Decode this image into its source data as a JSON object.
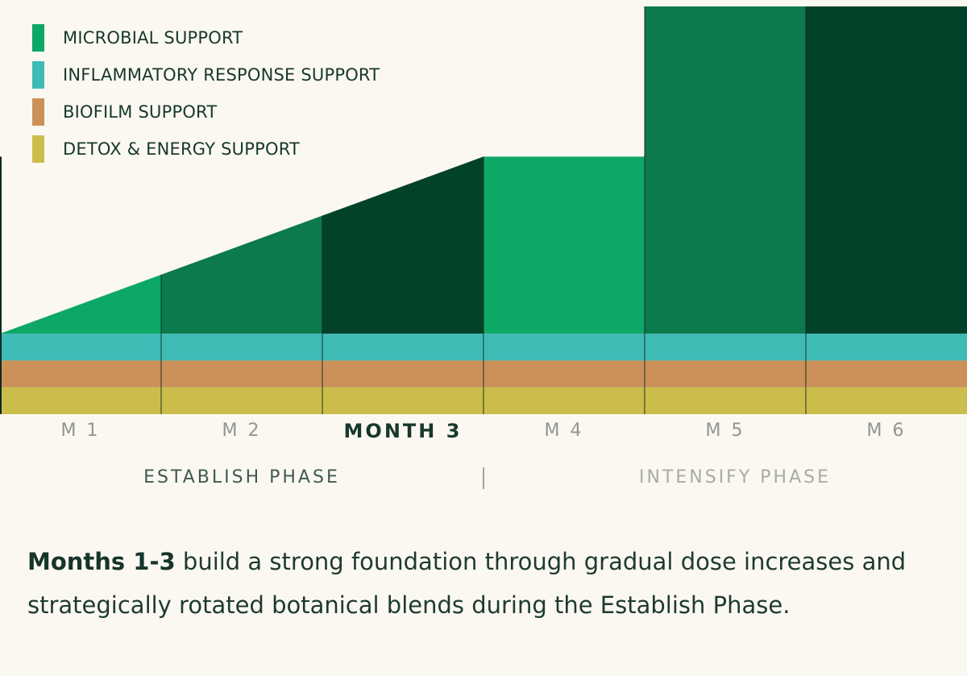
{
  "chart_data": {
    "type": "area",
    "categories": [
      "M 1",
      "M 2",
      "MONTH 3",
      "M 4",
      "M 5",
      "M 6"
    ],
    "active_category": "MONTH 3",
    "series": [
      {
        "name": "DETOX & ENERGY SUPPORT",
        "color": "#cbbd4b",
        "values": [
          1,
          1,
          1,
          1,
          1,
          1
        ]
      },
      {
        "name": "BIOFILM SUPPORT",
        "color": "#cb9159",
        "values": [
          1,
          1,
          1,
          1,
          1,
          1
        ]
      },
      {
        "name": "INFLAMMATORY RESPONSE SUPPORT",
        "color": "#3fbbb6",
        "values": [
          1,
          1,
          1,
          1,
          1,
          1
        ]
      },
      {
        "name": "MICROBIAL SUPPORT",
        "color": "#0ba866",
        "ramp_start": 0,
        "values": [
          2.2,
          4.4,
          6.6,
          6.6,
          12.2,
          12.2
        ]
      }
    ],
    "month_shades": [
      "#0ea866",
      "#0c7a4d",
      "#024229",
      "#0ea866",
      "#0c7a4d",
      "#024229"
    ],
    "legend": [
      {
        "label": "MICROBIAL SUPPORT",
        "color": "#0ba866"
      },
      {
        "label": "INFLAMMATORY RESPONSE SUPPORT",
        "color": "#3fbbb6"
      },
      {
        "label": "BIOFILM SUPPORT",
        "color": "#cb9159"
      },
      {
        "label": "DETOX & ENERGY SUPPORT",
        "color": "#cbbd4b"
      }
    ],
    "legend_position": "top-left",
    "ylim": [
      0,
      15.2
    ],
    "grid": false,
    "phases": [
      {
        "label": "ESTABLISH PHASE",
        "months": [
          1,
          3
        ]
      },
      {
        "label": "INTENSIFY PHASE",
        "months": [
          4,
          6
        ]
      }
    ]
  },
  "caption": {
    "bold": "Months 1-3",
    "text": " build a strong foundation through gradual dose increases and strategically rotated botanical blends during the Establish Phase."
  }
}
